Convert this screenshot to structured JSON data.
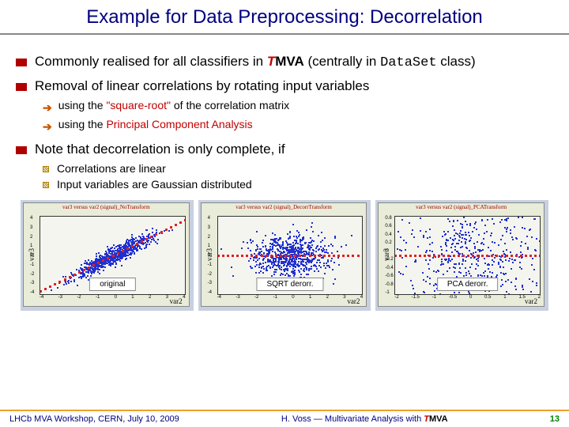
{
  "slide": {
    "title": "Example for Data Preprocessing: Decorrelation",
    "title_color": "#000080",
    "title_fontsize": 24
  },
  "bullets": {
    "b1_pre": "Commonly realised for all classifiers in ",
    "b1_tmva_t": "T",
    "b1_tmva_mva": "MVA",
    "b1_post": " (centrally in ",
    "b1_code": "DataSet",
    "b1_end": " class)",
    "b2": "Removal of linear correlations by rotating input variables",
    "b2a_pre": "using the ",
    "b2a_hl": "\"square-root\"",
    "b2a_post": " of the correlation matrix",
    "b2b_pre": "using the ",
    "b2b_hl": "Principal Component Analysis",
    "b3": "Note that decorrelation is only complete, if",
    "b3a": "Correlations are linear",
    "b3b": "Input variables are Gaussian distributed"
  },
  "plots": {
    "caption1": "original",
    "caption2": "SQRT derorr.",
    "caption3": "PCA derorr.",
    "title1": "var3 versus var2 (signal)_NoTransform",
    "title2": "var3 versus var2 (signal)_DecorrTransform",
    "title3": "var3 versus var2 (signal)_PCATransform",
    "xlabel": "var2",
    "ylabel": "var3",
    "colors": {
      "signal": "#2030d0",
      "profile": "#e02020",
      "bg": "#f5f5f0",
      "frame": "#e8ecd8",
      "shadow": "#c8d0e0"
    },
    "p1": {
      "xlim": [
        -4,
        4
      ],
      "ylim": [
        -4,
        4
      ],
      "xticks": [
        -4,
        -3,
        -2,
        -1,
        0,
        1,
        2,
        3,
        4
      ],
      "yticks": [
        -4,
        -3,
        -2,
        -1,
        0,
        1,
        2,
        3,
        4
      ]
    },
    "p2": {
      "xlim": [
        -4,
        4
      ],
      "ylim": [
        -4,
        4
      ],
      "xticks": [
        -4,
        -3,
        -2,
        -1,
        0,
        1,
        2,
        3,
        4
      ],
      "yticks": [
        -4,
        -3,
        -2,
        -1,
        0,
        1,
        2,
        3,
        4
      ]
    },
    "p3": {
      "xlim": [
        -2,
        2
      ],
      "ylim": [
        -1,
        1
      ],
      "xticks": [
        -2,
        -1.5,
        -1,
        -0.5,
        0,
        0.5,
        1,
        1.5,
        2
      ],
      "yticks": [
        -1,
        -0.8,
        -0.6,
        -0.4,
        -0.2,
        0,
        0.2,
        0.4,
        0.6,
        0.8
      ]
    },
    "scatter_type": "scatter",
    "marker": "square",
    "marker_size": 2
  },
  "footer": {
    "left": "LHCb MVA Workshop, CERN, July 10, 2009",
    "mid_pre": "H. Voss ― Multivariate Analysis with ",
    "mid_t": "T",
    "mid_mva": "MVA",
    "page": "13",
    "rule_color": "#f0a030"
  }
}
